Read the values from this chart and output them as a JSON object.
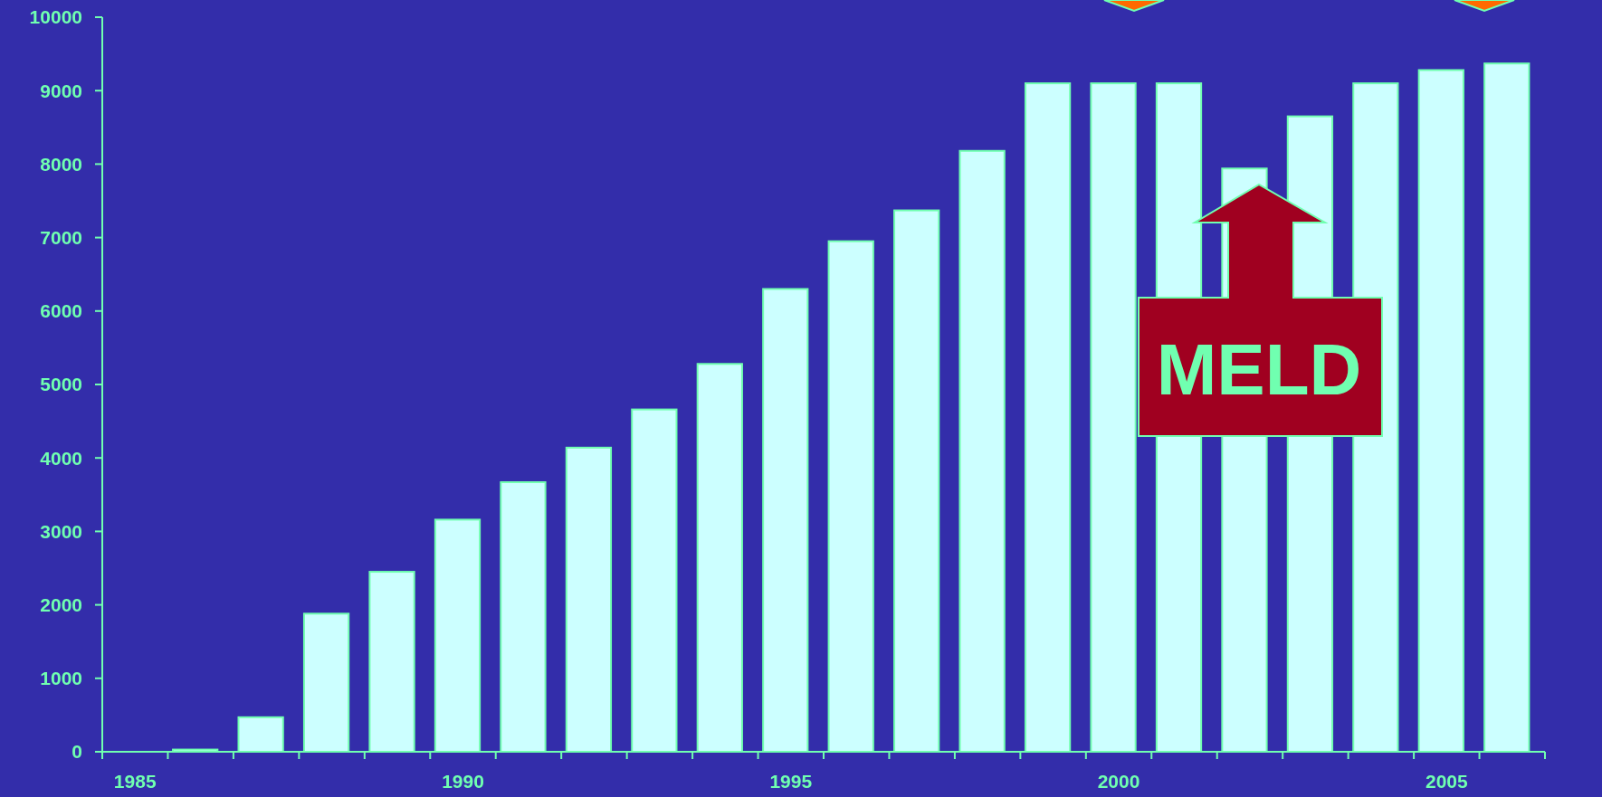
{
  "chart_data": {
    "type": "bar",
    "categories": [
      "1985",
      null,
      null,
      null,
      null,
      "1990",
      null,
      null,
      null,
      null,
      "1995",
      null,
      null,
      null,
      null,
      "2000",
      null,
      null,
      null,
      null,
      "2005",
      null
    ],
    "values": [
      0,
      30,
      470,
      1880,
      2450,
      3160,
      3670,
      4140,
      4660,
      5280,
      6300,
      6950,
      7370,
      8180,
      9100,
      9100,
      9100,
      7940,
      8650,
      9100,
      9280,
      9370
    ],
    "color": "#ccffff",
    "ylim": [
      0,
      10000
    ],
    "yticks": [
      0,
      1000,
      2000,
      3000,
      4000,
      5000,
      6000,
      7000,
      8000,
      9000,
      10000
    ],
    "annotations": [
      "MELD"
    ]
  }
}
